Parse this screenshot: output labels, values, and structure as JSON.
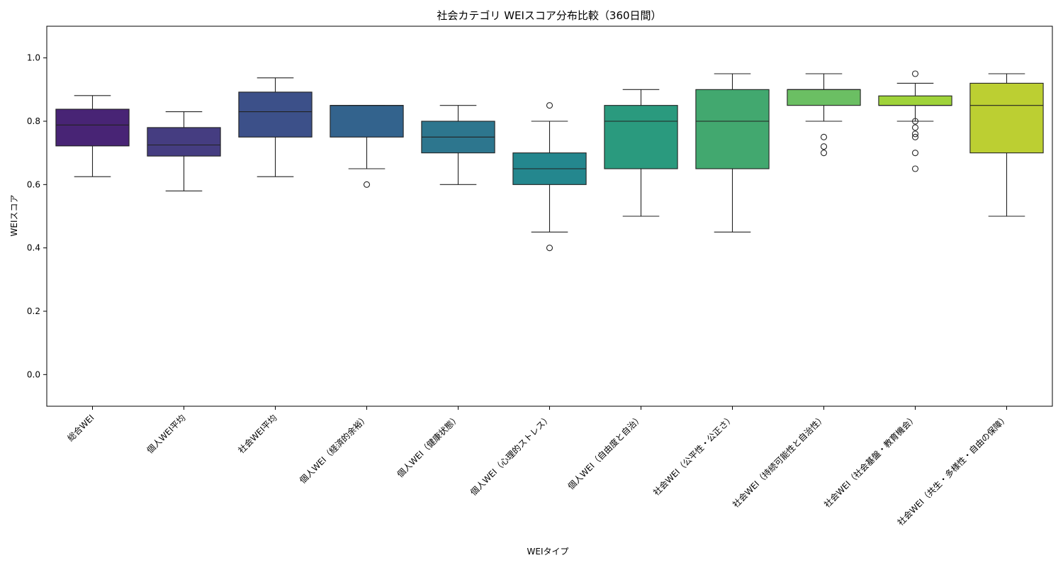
{
  "chart_data": {
    "type": "box",
    "title": "社会カテゴリ WEIスコア分布比較（360日間）",
    "xlabel": "WEIタイプ",
    "ylabel": "WEIスコア",
    "ylim": [
      -0.1,
      1.1
    ],
    "yticks": [
      0.0,
      0.2,
      0.4,
      0.6,
      0.8,
      1.0
    ],
    "ytick_labels": [
      "0.0",
      "0.2",
      "0.4",
      "0.6",
      "0.8",
      "1.0"
    ],
    "grid": false,
    "legend": "none",
    "categories": [
      "総合WEI",
      "個人WEI平均",
      "社会WEI平均",
      "個人WEI（経済的余裕）",
      "個人WEI（健康状態）",
      "個人WEI（心理的ストレス）",
      "個人WEI（自由度と自治）",
      "社会WEI（公平性・公正さ）",
      "社会WEI（持続可能性と自治性）",
      "社会WEI（社会基盤・教育機会）",
      "社会WEI（共生・多様性・自由の保障）"
    ],
    "boxes": [
      {
        "whisker_low": 0.625,
        "q1": 0.722,
        "median": 0.788,
        "q3": 0.838,
        "whisker_high": 0.881,
        "outliers": [],
        "color": "#482475"
      },
      {
        "whisker_low": 0.58,
        "q1": 0.69,
        "median": 0.725,
        "q3": 0.78,
        "whisker_high": 0.83,
        "outliers": [],
        "color": "#453d81"
      },
      {
        "whisker_low": 0.625,
        "q1": 0.75,
        "median": 0.83,
        "q3": 0.892,
        "whisker_high": 0.937,
        "outliers": [],
        "color": "#3c5089"
      },
      {
        "whisker_low": 0.65,
        "q1": 0.75,
        "median": 0.85,
        "q3": 0.85,
        "whisker_high": 0.85,
        "outliers": [
          0.6
        ],
        "color": "#33638d"
      },
      {
        "whisker_low": 0.6,
        "q1": 0.7,
        "median": 0.75,
        "q3": 0.8,
        "whisker_high": 0.85,
        "outliers": [],
        "color": "#2d768e"
      },
      {
        "whisker_low": 0.45,
        "q1": 0.6,
        "median": 0.65,
        "q3": 0.7,
        "whisker_high": 0.8,
        "outliers": [
          0.85,
          0.4
        ],
        "color": "#24878e"
      },
      {
        "whisker_low": 0.5,
        "q1": 0.65,
        "median": 0.8,
        "q3": 0.85,
        "whisker_high": 0.9,
        "outliers": [],
        "color": "#2a9a7e"
      },
      {
        "whisker_low": 0.45,
        "q1": 0.65,
        "median": 0.8,
        "q3": 0.9,
        "whisker_high": 0.95,
        "outliers": [],
        "color": "#42a86f"
      },
      {
        "whisker_low": 0.8,
        "q1": 0.85,
        "median": 0.9,
        "q3": 0.9,
        "whisker_high": 0.95,
        "outliers": [
          0.75,
          0.72,
          0.7
        ],
        "color": "#6bbf63"
      },
      {
        "whisker_low": 0.8,
        "q1": 0.85,
        "median": 0.85,
        "q3": 0.88,
        "whisker_high": 0.92,
        "outliers": [
          0.95,
          0.8,
          0.78,
          0.76,
          0.75,
          0.7,
          0.65
        ],
        "color": "#9fd33a"
      },
      {
        "whisker_low": 0.5,
        "q1": 0.7,
        "median": 0.85,
        "q3": 0.92,
        "whisker_high": 0.95,
        "outliers": [],
        "color": "#bccf32"
      }
    ]
  }
}
